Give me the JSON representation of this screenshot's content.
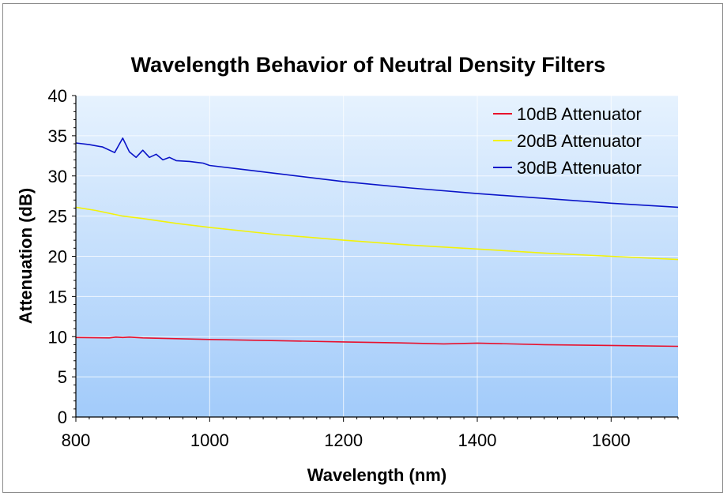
{
  "chart_data": {
    "type": "line",
    "title": "Wavelength Behavior of Neutral Density Filters",
    "xlabel": "Wavelength (nm)",
    "ylabel": "Attenuation (dB)",
    "xlim": [
      800,
      1700
    ],
    "ylim": [
      0,
      40
    ],
    "xticks": [
      800,
      1000,
      1200,
      1400,
      1600
    ],
    "xtick_labels": [
      "800",
      "1000",
      "1200",
      "1400",
      "1600"
    ],
    "yticks": [
      0,
      5,
      10,
      15,
      20,
      25,
      30,
      35,
      40
    ],
    "ytick_labels": [
      "0",
      "5",
      "10",
      "15",
      "20",
      "25",
      "30",
      "35",
      "40"
    ],
    "grid": true,
    "legend_position": "top-right",
    "series": [
      {
        "name": "10dB Attenuator",
        "color": "#e8112d",
        "x": [
          800,
          850,
          860,
          870,
          880,
          900,
          950,
          1000,
          1100,
          1200,
          1300,
          1350,
          1400,
          1500,
          1600,
          1700
        ],
        "values": [
          9.9,
          9.85,
          9.95,
          9.9,
          9.95,
          9.85,
          9.75,
          9.65,
          9.5,
          9.35,
          9.2,
          9.1,
          9.2,
          9.0,
          8.9,
          8.8
        ]
      },
      {
        "name": "20dB Attenuator",
        "color": "#f2f20a",
        "x": [
          800,
          830,
          870,
          900,
          950,
          1000,
          1100,
          1200,
          1300,
          1400,
          1500,
          1600,
          1700
        ],
        "values": [
          26.1,
          25.7,
          25.0,
          24.7,
          24.1,
          23.6,
          22.7,
          22.0,
          21.4,
          20.9,
          20.4,
          20.0,
          19.6
        ]
      },
      {
        "name": "30dB Attenuator",
        "color": "#0a14c8",
        "x": [
          800,
          820,
          840,
          858,
          870,
          880,
          890,
          900,
          910,
          920,
          930,
          940,
          950,
          970,
          990,
          1000,
          1050,
          1100,
          1150,
          1200,
          1300,
          1400,
          1500,
          1600,
          1700
        ],
        "values": [
          34.1,
          33.9,
          33.6,
          32.9,
          34.7,
          33.0,
          32.3,
          33.2,
          32.3,
          32.7,
          32.0,
          32.3,
          31.9,
          31.8,
          31.6,
          31.3,
          30.8,
          30.3,
          29.8,
          29.3,
          28.5,
          27.8,
          27.2,
          26.6,
          26.1
        ]
      }
    ]
  }
}
